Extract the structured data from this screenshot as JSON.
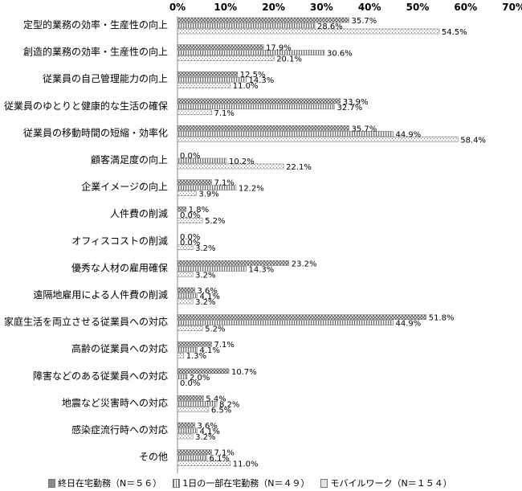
{
  "chart_data": {
    "type": "bar",
    "orientation": "horizontal",
    "xlim": [
      0,
      70
    ],
    "ticks": [
      "0%",
      "10%",
      "20%",
      "30%",
      "40%",
      "50%",
      "60%",
      "70%"
    ],
    "grid": false,
    "legend_position": "bottom",
    "categories": [
      "定型的業務の効率・生産性の向上",
      "創造的業務の効率・生産性の向上",
      "従業員の自己管理能力の向上",
      "従業員のゆとりと健康的な生活の確保",
      "従業員の移動時間の短縮・効率化",
      "顧客満足度の向上",
      "企業イメージの向上",
      "人件費の削減",
      "オフィスコストの削減",
      "優秀な人材の雇用確保",
      "遠隔地雇用による人件費の削減",
      "家庭生活を両立させる従業員への対応",
      "高齢の従業員への対応",
      "障害などのある従業員への対応",
      "地震など災害時への対応",
      "感染症流行時への対応",
      "その他"
    ],
    "series": [
      {
        "name": "終日在宅勤務（N＝５６）",
        "values": [
          35.7,
          17.9,
          12.5,
          33.9,
          35.7,
          0.0,
          7.1,
          1.8,
          0.0,
          23.2,
          3.6,
          51.8,
          7.1,
          10.7,
          5.4,
          3.6,
          7.1
        ],
        "labels": [
          "35.7%",
          "17.9%",
          "12.5%",
          "33.9%",
          "35.7%",
          "0.0%",
          "7.1%",
          "1.8%",
          "0.0%",
          "23.2%",
          "3.6%",
          "51.8%",
          "7.1%",
          "10.7%",
          "5.4%",
          "3.6%",
          "7.1%"
        ]
      },
      {
        "name": "1日の一部在宅勤務（N＝４９）",
        "values": [
          28.6,
          30.6,
          14.3,
          32.7,
          44.9,
          10.2,
          12.2,
          0.0,
          0.0,
          14.3,
          4.1,
          44.9,
          4.1,
          2.0,
          8.2,
          4.1,
          6.1
        ],
        "labels": [
          "28.6%",
          "30.6%",
          "14.3%",
          "32.7%",
          "44.9%",
          "10.2%",
          "12.2%",
          "0.0%",
          "0.0%",
          "14.3%",
          "4.1%",
          "44.9%",
          "4.1%",
          "2.0%",
          "8.2%",
          "4.1%",
          "6.1%"
        ]
      },
      {
        "name": "モバイルワーク（N＝１５４）",
        "values": [
          54.5,
          20.1,
          11.0,
          7.1,
          58.4,
          22.1,
          3.9,
          5.2,
          3.2,
          3.2,
          3.2,
          5.2,
          1.3,
          0.0,
          6.5,
          3.2,
          11.0
        ],
        "labels": [
          "54.5%",
          "20.1%",
          "11.0%",
          "7.1%",
          "58.4%",
          "22.1%",
          "3.9%",
          "5.2%",
          "3.2%",
          "3.2%",
          "3.2%",
          "5.2%",
          "1.3%",
          "0.0%",
          "6.5%",
          "3.2%",
          "11.0%"
        ]
      }
    ]
  }
}
